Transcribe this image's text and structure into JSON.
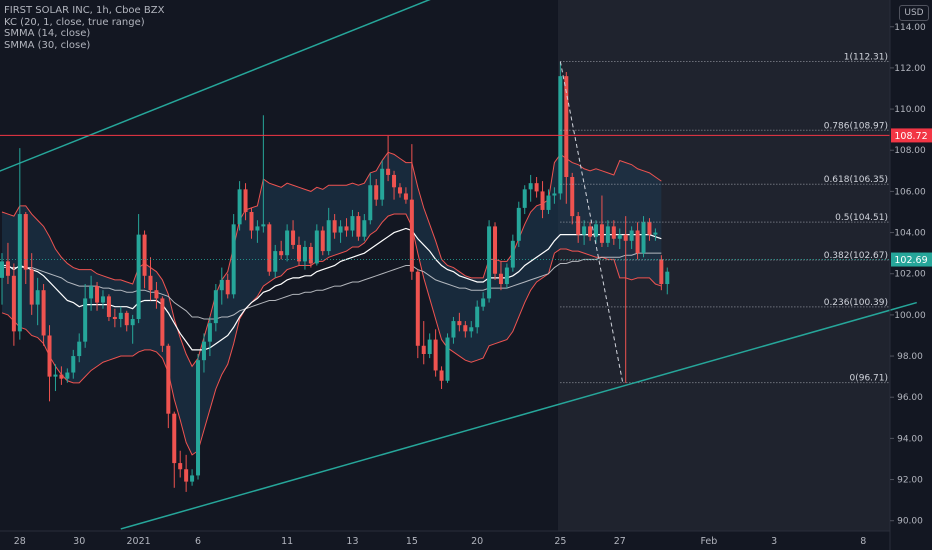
{
  "legend": {
    "title": "FIRST SOLAR INC, 1h, Cboe BZX",
    "kc": "KC (20, 1, close, true range)",
    "smma14": "SMMA (14, close)",
    "smma30": "SMMA (30, close)"
  },
  "currency": "USD",
  "colors": {
    "background": "#131722",
    "up": "#26a69a",
    "down": "#ef5350",
    "kc_band": "#ef5350",
    "kc_fill": "#1e3a52",
    "smma14": "#ffffff",
    "smma30": "#cfd1d6",
    "trend_line": "#26a69a",
    "horizontal_line": "#f23645",
    "fib": "#b2b5be",
    "axis_text": "#b2b5be"
  },
  "chart_data": {
    "type": "candlestick",
    "y_axis": {
      "min": 89.5,
      "max": 115.3,
      "ticks": [
        90,
        92,
        94,
        96,
        98,
        100,
        102,
        104,
        106,
        108,
        110,
        112,
        114
      ],
      "tick_labels": [
        "90.00",
        "92.00",
        "94.00",
        "96.00",
        "98.00",
        "100.00",
        "102.00",
        "104.00",
        "106.00",
        "108.00",
        "110.00",
        "112.00",
        "114.00"
      ]
    },
    "x_axis": {
      "labels": [
        {
          "text": "28",
          "bar": 3
        },
        {
          "text": "30",
          "bar": 13
        },
        {
          "text": "2021",
          "bar": 23
        },
        {
          "text": "6",
          "bar": 33
        },
        {
          "text": "11",
          "bar": 48
        },
        {
          "text": "13",
          "bar": 59
        },
        {
          "text": "15",
          "bar": 69
        },
        {
          "text": "20",
          "bar": 80
        },
        {
          "text": "25",
          "bar": 94
        },
        {
          "text": "27",
          "bar": 104
        },
        {
          "text": "Feb",
          "bar": 119
        },
        {
          "text": "3",
          "bar": 130
        },
        {
          "text": "8",
          "bar": 145
        }
      ]
    },
    "candles": [
      {
        "o": 101.8,
        "h": 103.0,
        "l": 100.5,
        "c": 102.6
      },
      {
        "o": 102.6,
        "h": 103.5,
        "l": 101.5,
        "c": 101.9
      },
      {
        "o": 101.9,
        "h": 102.5,
        "l": 98.5,
        "c": 99.2
      },
      {
        "o": 99.2,
        "h": 108.1,
        "l": 98.8,
        "c": 104.9
      },
      {
        "o": 104.9,
        "h": 105.0,
        "l": 101.5,
        "c": 102.2
      },
      {
        "o": 102.2,
        "h": 103.0,
        "l": 100.0,
        "c": 100.5
      },
      {
        "o": 100.5,
        "h": 101.8,
        "l": 99.5,
        "c": 101.2
      },
      {
        "o": 101.2,
        "h": 101.5,
        "l": 98.5,
        "c": 99.0
      },
      {
        "o": 99.0,
        "h": 99.5,
        "l": 95.8,
        "c": 97.0
      },
      {
        "o": 97.0,
        "h": 97.6,
        "l": 96.3,
        "c": 97.1
      },
      {
        "o": 97.1,
        "h": 97.5,
        "l": 96.6,
        "c": 96.9
      },
      {
        "o": 96.9,
        "h": 97.4,
        "l": 96.7,
        "c": 97.2
      },
      {
        "o": 97.2,
        "h": 98.3,
        "l": 96.9,
        "c": 98.0
      },
      {
        "o": 98.0,
        "h": 99.1,
        "l": 97.7,
        "c": 98.7
      },
      {
        "o": 98.7,
        "h": 101.5,
        "l": 98.4,
        "c": 100.8
      },
      {
        "o": 100.8,
        "h": 101.9,
        "l": 100.2,
        "c": 101.4
      },
      {
        "o": 101.4,
        "h": 101.6,
        "l": 100.2,
        "c": 100.6
      },
      {
        "o": 100.6,
        "h": 101.2,
        "l": 100.3,
        "c": 100.9
      },
      {
        "o": 100.9,
        "h": 101.0,
        "l": 99.7,
        "c": 99.9
      },
      {
        "o": 99.9,
        "h": 100.3,
        "l": 99.4,
        "c": 99.8
      },
      {
        "o": 99.8,
        "h": 100.4,
        "l": 99.4,
        "c": 100.1
      },
      {
        "o": 100.1,
        "h": 100.2,
        "l": 99.2,
        "c": 99.5
      },
      {
        "o": 99.5,
        "h": 100.0,
        "l": 98.6,
        "c": 99.8
      },
      {
        "o": 99.8,
        "h": 104.9,
        "l": 99.6,
        "c": 103.9
      },
      {
        "o": 103.9,
        "h": 104.1,
        "l": 101.3,
        "c": 101.9
      },
      {
        "o": 101.9,
        "h": 102.8,
        "l": 100.7,
        "c": 101.2
      },
      {
        "o": 101.2,
        "h": 101.6,
        "l": 100.3,
        "c": 100.8
      },
      {
        "o": 100.8,
        "h": 100.9,
        "l": 98.2,
        "c": 98.5
      },
      {
        "o": 98.5,
        "h": 98.6,
        "l": 94.5,
        "c": 95.2
      },
      {
        "o": 95.2,
        "h": 95.3,
        "l": 91.6,
        "c": 92.8
      },
      {
        "o": 92.8,
        "h": 93.4,
        "l": 92.1,
        "c": 92.5
      },
      {
        "o": 92.5,
        "h": 93.2,
        "l": 91.4,
        "c": 91.9
      },
      {
        "o": 91.9,
        "h": 92.5,
        "l": 91.7,
        "c": 92.2
      },
      {
        "o": 92.2,
        "h": 98.1,
        "l": 92.0,
        "c": 97.8
      },
      {
        "o": 97.8,
        "h": 99.1,
        "l": 97.2,
        "c": 98.7
      },
      {
        "o": 98.7,
        "h": 99.9,
        "l": 98.0,
        "c": 99.6
      },
      {
        "o": 99.6,
        "h": 101.5,
        "l": 99.2,
        "c": 101.2
      },
      {
        "o": 101.2,
        "h": 102.3,
        "l": 100.5,
        "c": 101.7
      },
      {
        "o": 101.7,
        "h": 102.0,
        "l": 100.8,
        "c": 101.0
      },
      {
        "o": 101.0,
        "h": 104.9,
        "l": 100.8,
        "c": 104.4
      },
      {
        "o": 104.4,
        "h": 106.5,
        "l": 104.1,
        "c": 106.1
      },
      {
        "o": 106.1,
        "h": 106.4,
        "l": 104.6,
        "c": 105.0
      },
      {
        "o": 105.0,
        "h": 105.2,
        "l": 103.7,
        "c": 104.1
      },
      {
        "o": 104.1,
        "h": 104.6,
        "l": 103.5,
        "c": 104.3
      },
      {
        "o": 104.3,
        "h": 109.7,
        "l": 104.0,
        "c": 104.4
      },
      {
        "o": 104.4,
        "h": 104.5,
        "l": 101.9,
        "c": 102.1
      },
      {
        "o": 102.1,
        "h": 103.4,
        "l": 101.8,
        "c": 103.1
      },
      {
        "o": 103.1,
        "h": 103.6,
        "l": 102.7,
        "c": 102.9
      },
      {
        "o": 102.9,
        "h": 104.4,
        "l": 102.6,
        "c": 104.1
      },
      {
        "o": 104.1,
        "h": 104.6,
        "l": 103.2,
        "c": 103.4
      },
      {
        "o": 103.4,
        "h": 103.8,
        "l": 102.4,
        "c": 102.6
      },
      {
        "o": 102.6,
        "h": 103.6,
        "l": 102.2,
        "c": 103.3
      },
      {
        "o": 103.3,
        "h": 103.5,
        "l": 102.3,
        "c": 102.5
      },
      {
        "o": 102.5,
        "h": 104.4,
        "l": 102.4,
        "c": 104.1
      },
      {
        "o": 104.1,
        "h": 104.3,
        "l": 102.9,
        "c": 103.1
      },
      {
        "o": 103.1,
        "h": 105.2,
        "l": 102.9,
        "c": 104.6
      },
      {
        "o": 104.6,
        "h": 104.9,
        "l": 103.7,
        "c": 104.0
      },
      {
        "o": 104.0,
        "h": 104.6,
        "l": 103.5,
        "c": 104.3
      },
      {
        "o": 104.3,
        "h": 104.7,
        "l": 103.8,
        "c": 104.1
      },
      {
        "o": 104.1,
        "h": 105.1,
        "l": 103.8,
        "c": 104.8
      },
      {
        "o": 104.8,
        "h": 105.0,
        "l": 103.6,
        "c": 103.8
      },
      {
        "o": 103.8,
        "h": 104.9,
        "l": 103.6,
        "c": 104.6
      },
      {
        "o": 104.6,
        "h": 106.9,
        "l": 104.4,
        "c": 106.3
      },
      {
        "o": 106.3,
        "h": 106.6,
        "l": 105.3,
        "c": 105.6
      },
      {
        "o": 105.6,
        "h": 107.5,
        "l": 105.3,
        "c": 107.1
      },
      {
        "o": 107.1,
        "h": 108.7,
        "l": 106.5,
        "c": 106.8
      },
      {
        "o": 106.8,
        "h": 107.0,
        "l": 105.6,
        "c": 106.2
      },
      {
        "o": 106.2,
        "h": 106.4,
        "l": 105.7,
        "c": 105.9
      },
      {
        "o": 105.9,
        "h": 106.2,
        "l": 105.4,
        "c": 105.6
      },
      {
        "o": 105.6,
        "h": 108.3,
        "l": 101.7,
        "c": 102.1
      },
      {
        "o": 102.1,
        "h": 102.2,
        "l": 97.9,
        "c": 98.5
      },
      {
        "o": 98.5,
        "h": 99.7,
        "l": 97.6,
        "c": 98.1
      },
      {
        "o": 98.1,
        "h": 99.1,
        "l": 97.9,
        "c": 98.8
      },
      {
        "o": 98.8,
        "h": 99.3,
        "l": 97.0,
        "c": 97.3
      },
      {
        "o": 97.3,
        "h": 97.5,
        "l": 96.4,
        "c": 96.8
      },
      {
        "o": 96.8,
        "h": 99.1,
        "l": 96.7,
        "c": 98.9
      },
      {
        "o": 98.9,
        "h": 99.9,
        "l": 98.6,
        "c": 99.7
      },
      {
        "o": 99.7,
        "h": 100.1,
        "l": 99.2,
        "c": 99.5
      },
      {
        "o": 99.5,
        "h": 99.7,
        "l": 98.9,
        "c": 99.2
      },
      {
        "o": 99.2,
        "h": 99.7,
        "l": 98.9,
        "c": 99.4
      },
      {
        "o": 99.4,
        "h": 100.7,
        "l": 99.1,
        "c": 100.4
      },
      {
        "o": 100.4,
        "h": 101.1,
        "l": 100.2,
        "c": 100.8
      },
      {
        "o": 100.8,
        "h": 104.6,
        "l": 100.6,
        "c": 104.3
      },
      {
        "o": 104.3,
        "h": 104.5,
        "l": 101.7,
        "c": 102.0
      },
      {
        "o": 102.0,
        "h": 102.6,
        "l": 101.2,
        "c": 101.5
      },
      {
        "o": 101.5,
        "h": 102.5,
        "l": 101.3,
        "c": 102.3
      },
      {
        "o": 102.3,
        "h": 103.9,
        "l": 102.1,
        "c": 103.6
      },
      {
        "o": 103.6,
        "h": 105.5,
        "l": 103.3,
        "c": 105.2
      },
      {
        "o": 105.2,
        "h": 106.3,
        "l": 104.9,
        "c": 106.1
      },
      {
        "o": 106.1,
        "h": 106.8,
        "l": 105.5,
        "c": 106.4
      },
      {
        "o": 106.4,
        "h": 106.7,
        "l": 105.7,
        "c": 106.0
      },
      {
        "o": 106.0,
        "h": 106.5,
        "l": 104.7,
        "c": 105.1
      },
      {
        "o": 105.1,
        "h": 106.1,
        "l": 104.9,
        "c": 105.8
      },
      {
        "o": 105.8,
        "h": 106.2,
        "l": 105.4,
        "c": 105.9
      },
      {
        "o": 105.9,
        "h": 112.3,
        "l": 105.6,
        "c": 111.6
      },
      {
        "o": 111.6,
        "h": 111.8,
        "l": 105.4,
        "c": 106.7
      },
      {
        "o": 106.7,
        "h": 106.9,
        "l": 104.4,
        "c": 104.8
      },
      {
        "o": 104.8,
        "h": 105.0,
        "l": 103.5,
        "c": 103.9
      },
      {
        "o": 103.9,
        "h": 104.6,
        "l": 103.4,
        "c": 104.3
      },
      {
        "o": 104.3,
        "h": 104.5,
        "l": 103.6,
        "c": 103.8
      },
      {
        "o": 103.8,
        "h": 104.6,
        "l": 103.5,
        "c": 104.4
      },
      {
        "o": 104.4,
        "h": 105.8,
        "l": 103.3,
        "c": 103.5
      },
      {
        "o": 103.5,
        "h": 104.6,
        "l": 103.3,
        "c": 104.3
      },
      {
        "o": 104.3,
        "h": 104.6,
        "l": 103.4,
        "c": 103.7
      },
      {
        "o": 103.7,
        "h": 104.2,
        "l": 103.2,
        "c": 103.9
      },
      {
        "o": 103.9,
        "h": 104.8,
        "l": 96.7,
        "c": 103.6
      },
      {
        "o": 103.6,
        "h": 104.3,
        "l": 103.2,
        "c": 104.1
      },
      {
        "o": 104.1,
        "h": 104.5,
        "l": 102.7,
        "c": 103.0
      },
      {
        "o": 103.0,
        "h": 104.8,
        "l": 102.8,
        "c": 104.5
      },
      {
        "o": 104.5,
        "h": 104.7,
        "l": 103.6,
        "c": 103.9
      },
      {
        "o": 103.9,
        "h": 104.2,
        "l": 103.6,
        "c": 104.0
      },
      {
        "o": 102.7,
        "h": 102.9,
        "l": 101.2,
        "c": 101.5
      },
      {
        "o": 101.5,
        "h": 102.3,
        "l": 101.0,
        "c": 102.1
      }
    ],
    "kc_upper": [
      105.0,
      104.9,
      104.8,
      105.3,
      105.3,
      104.9,
      104.6,
      104.3,
      103.8,
      103.2,
      102.8,
      102.5,
      102.3,
      102.2,
      102.2,
      102.2,
      102.0,
      101.9,
      101.8,
      101.7,
      101.7,
      101.6,
      101.5,
      102.3,
      102.5,
      102.3,
      102.1,
      101.7,
      101.0,
      99.8,
      98.9,
      98.1,
      97.5,
      97.9,
      98.9,
      99.9,
      101.0,
      101.7,
      102.1,
      103.3,
      104.6,
      105.1,
      105.2,
      105.3,
      106.6,
      106.4,
      106.3,
      106.2,
      106.4,
      106.3,
      106.2,
      106.1,
      106.0,
      106.2,
      106.1,
      106.3,
      106.3,
      106.3,
      106.3,
      106.4,
      106.3,
      106.4,
      106.9,
      107.0,
      107.5,
      107.9,
      107.8,
      107.6,
      107.4,
      107.4,
      106.2,
      105.2,
      104.4,
      103.6,
      102.7,
      102.4,
      102.3,
      102.1,
      101.9,
      101.8,
      101.8,
      101.8,
      102.7,
      102.7,
      102.6,
      102.6,
      103.0,
      103.7,
      104.4,
      105.0,
      105.3,
      105.4,
      105.6,
      107.4,
      107.8,
      107.6,
      107.4,
      107.3,
      107.1,
      107.0,
      107.1,
      107.0,
      106.9,
      106.8,
      107.5,
      107.4,
      107.3,
      107.1,
      107.0,
      106.9,
      106.7,
      106.5
    ],
    "kc_lower": [
      100.1,
      100.0,
      99.7,
      99.4,
      99.3,
      99.0,
      98.9,
      98.6,
      98.0,
      97.5,
      97.1,
      96.8,
      96.7,
      96.7,
      97.0,
      97.3,
      97.5,
      97.7,
      97.8,
      97.9,
      98.0,
      98.0,
      98.0,
      98.2,
      98.3,
      98.3,
      98.2,
      97.9,
      97.2,
      95.9,
      94.9,
      93.8,
      93.2,
      93.4,
      94.4,
      95.4,
      96.4,
      97.1,
      97.6,
      98.6,
      99.8,
      100.3,
      100.6,
      100.9,
      101.4,
      101.6,
      101.8,
      101.9,
      102.2,
      102.3,
      102.4,
      102.4,
      102.4,
      102.6,
      102.6,
      102.8,
      102.9,
      103.0,
      103.1,
      103.3,
      103.3,
      103.5,
      103.9,
      104.1,
      104.5,
      104.8,
      104.9,
      104.9,
      104.9,
      104.3,
      103.0,
      101.8,
      100.8,
      99.8,
      98.8,
      98.4,
      98.2,
      98.0,
      97.8,
      97.7,
      97.8,
      97.9,
      98.5,
      98.6,
      98.7,
      98.8,
      99.2,
      99.9,
      100.6,
      101.2,
      101.6,
      101.8,
      102.0,
      103.0,
      103.2,
      103.2,
      103.1,
      103.1,
      103.0,
      102.9,
      102.8,
      102.8,
      102.7,
      102.7,
      101.8,
      101.8,
      101.7,
      101.8,
      101.8,
      101.8,
      101.5,
      101.4
    ],
    "smma14": [
      102.4,
      102.4,
      102.2,
      102.4,
      102.3,
      102.2,
      102.1,
      101.9,
      101.6,
      101.3,
      101.0,
      100.7,
      100.6,
      100.4,
      100.5,
      100.5,
      100.5,
      100.5,
      100.5,
      100.4,
      100.4,
      100.4,
      100.3,
      100.6,
      100.7,
      100.7,
      100.7,
      100.5,
      100.1,
      99.6,
      99.1,
      98.7,
      98.3,
      98.3,
      98.3,
      98.4,
      98.6,
      98.8,
      99.0,
      99.4,
      99.9,
      100.3,
      100.6,
      100.8,
      101.1,
      101.2,
      101.4,
      101.5,
      101.7,
      101.8,
      101.8,
      101.9,
      101.9,
      102.1,
      102.2,
      102.3,
      102.4,
      102.6,
      102.7,
      102.8,
      102.9,
      103.0,
      103.2,
      103.4,
      103.6,
      103.8,
      104.0,
      104.1,
      104.2,
      104.1,
      103.7,
      103.4,
      103.1,
      102.7,
      102.4,
      102.2,
      102.1,
      101.9,
      101.8,
      101.7,
      101.6,
      101.6,
      101.8,
      101.8,
      101.8,
      101.8,
      101.9,
      102.1,
      102.4,
      102.6,
      102.8,
      103.0,
      103.2,
      103.6,
      103.9,
      103.9,
      103.9,
      103.9,
      103.9,
      103.9,
      103.9,
      103.9,
      103.9,
      103.9,
      103.9,
      103.9,
      103.9,
      103.9,
      103.9,
      103.9,
      103.8,
      103.7
    ],
    "smma30": [
      102.3,
      102.3,
      102.3,
      102.3,
      102.3,
      102.3,
      102.2,
      102.1,
      102.0,
      101.9,
      101.8,
      101.6,
      101.5,
      101.4,
      101.4,
      101.4,
      101.4,
      101.3,
      101.3,
      101.2,
      101.2,
      101.1,
      101.1,
      101.2,
      101.2,
      101.1,
      101.1,
      101.0,
      100.9,
      100.6,
      100.4,
      100.2,
      99.9,
      99.9,
      99.8,
      99.8,
      99.8,
      99.9,
      99.9,
      100.0,
      100.2,
      100.3,
      100.4,
      100.5,
      100.6,
      100.7,
      100.7,
      100.8,
      100.9,
      101.0,
      101.0,
      101.1,
      101.1,
      101.2,
      101.2,
      101.3,
      101.4,
      101.4,
      101.5,
      101.6,
      101.6,
      101.7,
      101.8,
      101.9,
      102.0,
      102.1,
      102.2,
      102.3,
      102.4,
      102.4,
      102.2,
      102.1,
      101.9,
      101.7,
      101.6,
      101.5,
      101.4,
      101.3,
      101.3,
      101.2,
      101.2,
      101.2,
      101.3,
      101.3,
      101.3,
      101.3,
      101.4,
      101.5,
      101.6,
      101.7,
      101.8,
      101.9,
      102.0,
      102.3,
      102.5,
      102.5,
      102.6,
      102.6,
      102.7,
      102.7,
      102.7,
      102.8,
      102.8,
      102.8,
      102.8,
      102.9,
      102.9,
      103.0,
      103.0,
      103.0,
      103.0,
      103.0
    ],
    "trend_lines": [
      {
        "from": {
          "bar": -2,
          "y": 106.8
        },
        "to": {
          "bar": 84,
          "y": 116.7
        }
      },
      {
        "from": {
          "bar": 20,
          "y": 89.6
        },
        "to": {
          "bar": 154,
          "y": 100.6
        }
      }
    ],
    "horizontal_line": {
      "value": 108.72,
      "label": "108.72"
    },
    "fibonacci": {
      "start_bar": 94,
      "end_bar": 151,
      "levels": [
        {
          "label": "1(112.31)",
          "value": 112.31
        },
        {
          "label": "0.786(108.97)",
          "value": 108.97
        },
        {
          "label": "0.618(106.35)",
          "value": 106.35
        },
        {
          "label": "0.5(104.51)",
          "value": 104.51
        },
        {
          "label": "0.382(102.67)",
          "value": 102.67
        },
        {
          "label": "0.236(100.39)",
          "value": 100.39
        },
        {
          "label": "0(96.71)",
          "value": 96.71
        }
      ],
      "dashed_connector": [
        {
          "bar": 94,
          "y": 112.31
        },
        {
          "bar": 104.5,
          "y": 96.71
        }
      ]
    },
    "highlight_range": {
      "from_bar": 93.6,
      "to_bar": 151
    },
    "last_price": {
      "value": 102.69,
      "label": "102.69"
    }
  }
}
